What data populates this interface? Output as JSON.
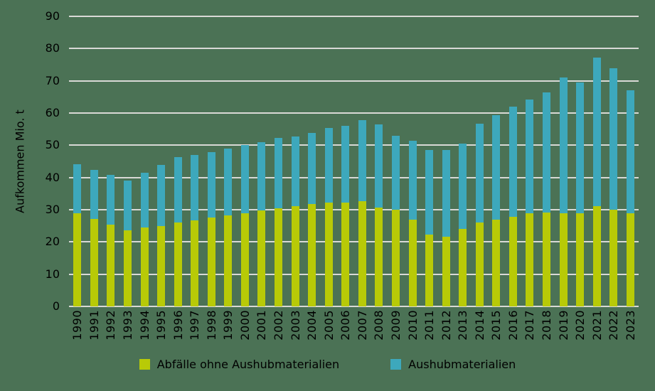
{
  "colors": {
    "background": "#4b7255",
    "gridline": "#d9d9d6",
    "text": "#000000"
  },
  "chart_data": {
    "type": "bar",
    "stacked": true,
    "title": "",
    "xlabel": "",
    "ylabel": "Aufkommen Mio. t",
    "ylim": [
      0,
      90
    ],
    "ytick_step": 10,
    "yticks": [
      0,
      10,
      20,
      30,
      40,
      50,
      60,
      70,
      80,
      90
    ],
    "grid": true,
    "legend_position": "bottom",
    "categories": [
      "1990",
      "1991",
      "1992",
      "1993",
      "1994",
      "1995",
      "1996",
      "1997",
      "1998",
      "1999",
      "2000",
      "2001",
      "2002",
      "2003",
      "2004",
      "2005",
      "2006",
      "2007",
      "2008",
      "2009",
      "2010",
      "2011",
      "2012",
      "2013",
      "2014",
      "2015",
      "2016",
      "2017",
      "2018",
      "2019",
      "2020",
      "2021",
      "2022",
      "2023"
    ],
    "series": [
      {
        "name": "Abfälle ohne Aushubmaterialien",
        "color": "#b8ca07",
        "values": [
          29.0,
          27.2,
          25.3,
          23.6,
          24.4,
          25.0,
          26.0,
          26.8,
          27.5,
          28.2,
          29.0,
          29.7,
          30.4,
          31.1,
          31.7,
          32.2,
          32.3,
          32.6,
          30.6,
          29.9,
          27.0,
          22.2,
          21.6,
          24.0,
          26.1,
          26.9,
          27.9,
          28.8,
          29.2,
          29.0,
          29.0,
          31.2,
          29.9,
          29.0
        ]
      },
      {
        "name": "Aushubmaterialien",
        "color": "#3da8bc",
        "values": [
          15.1,
          15.2,
          15.5,
          15.4,
          17.1,
          18.8,
          20.3,
          20.2,
          20.3,
          20.7,
          21.0,
          21.2,
          21.8,
          21.7,
          22.2,
          23.1,
          23.8,
          25.3,
          25.8,
          23.1,
          24.5,
          26.3,
          26.9,
          26.6,
          30.5,
          32.5,
          34.0,
          35.3,
          37.1,
          42.1,
          40.6,
          46.0,
          44.0,
          38.0
        ]
      }
    ],
    "totals": [
      44.1,
      42.4,
      40.8,
      39.0,
      41.5,
      43.8,
      46.3,
      47.0,
      47.8,
      48.9,
      50.0,
      50.9,
      52.2,
      52.8,
      53.9,
      55.3,
      56.1,
      57.9,
      56.4,
      53.0,
      51.5,
      48.5,
      48.5,
      50.6,
      56.6,
      59.4,
      61.9,
      64.1,
      66.3,
      71.1,
      69.6,
      77.2,
      73.9,
      67.0
    ]
  }
}
